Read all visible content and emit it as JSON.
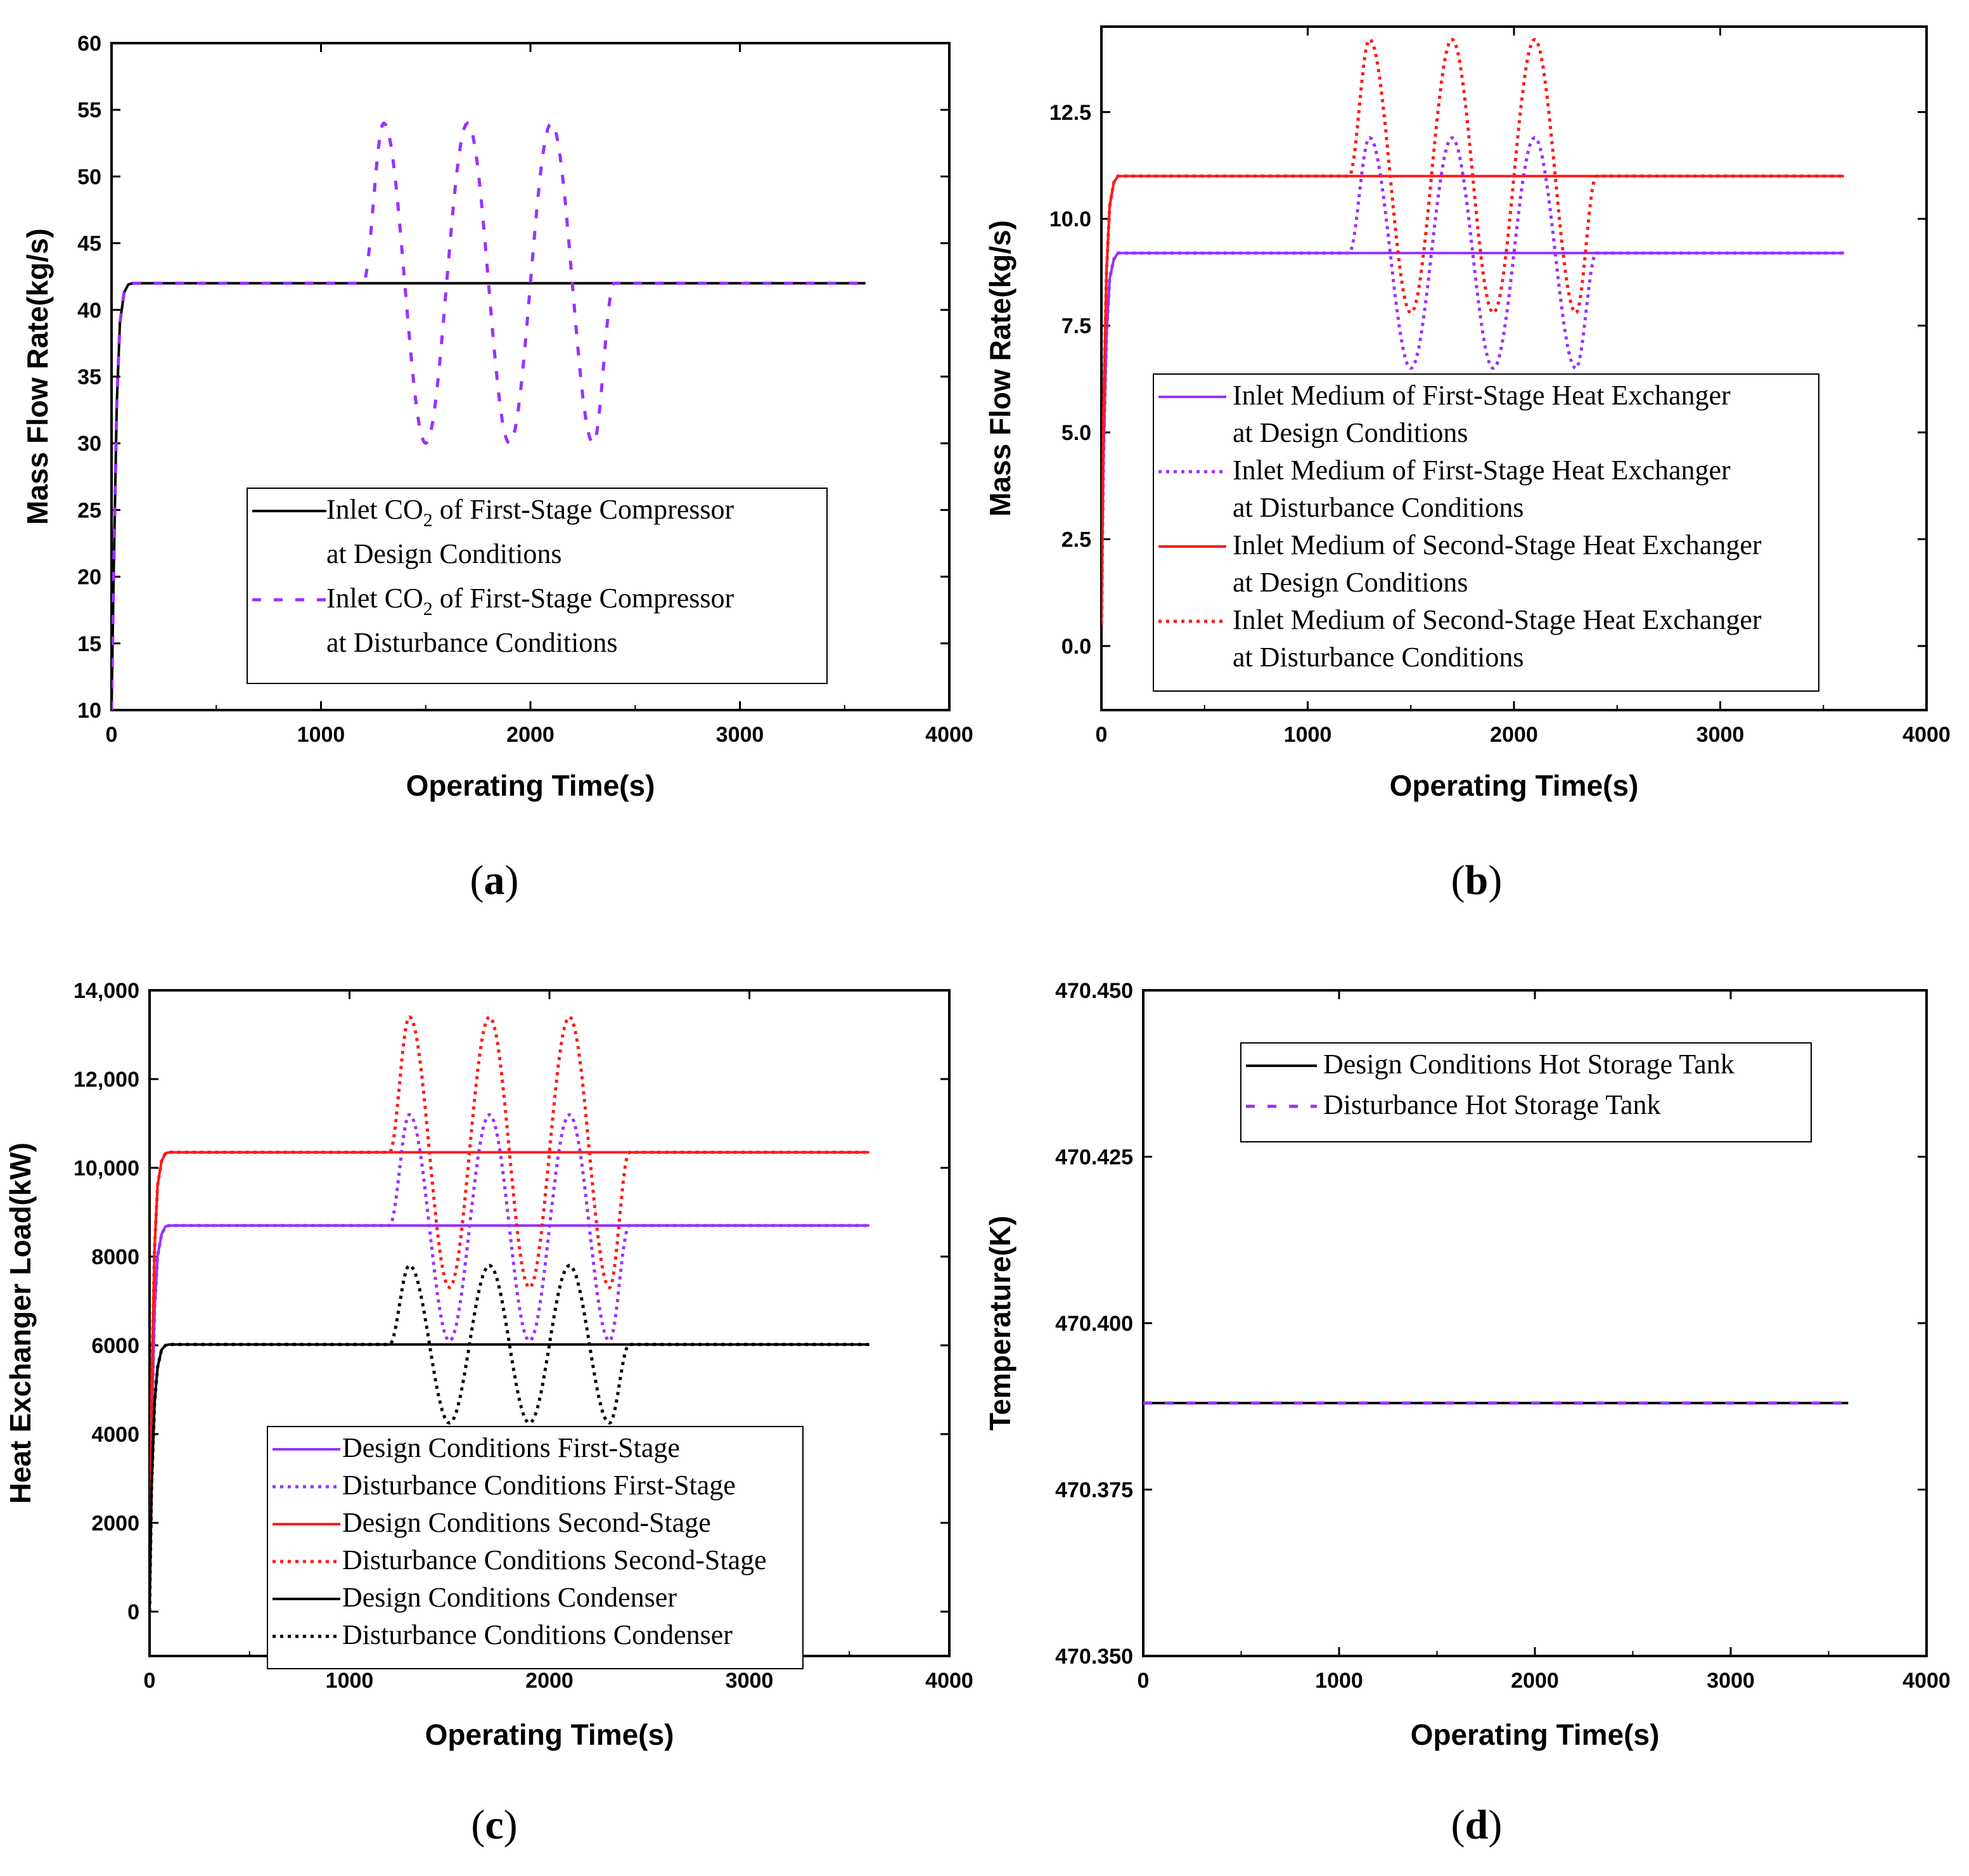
{
  "chart_data": [
    {
      "id": "a",
      "type": "line",
      "caption": "a",
      "xlabel": "Operating Time(s)",
      "ylabel": "Mass Flow Rate(kg/s)",
      "xlim": [
        0,
        4000
      ],
      "ylim": [
        10,
        60
      ],
      "xticks": [
        0,
        1000,
        2000,
        3000,
        4000
      ],
      "yticks": [
        10,
        15,
        20,
        25,
        30,
        35,
        40,
        45,
        50,
        55,
        60
      ],
      "ytick_labels": [
        "10",
        "15",
        "20",
        "25",
        "30",
        "35",
        "40",
        "45",
        "50",
        "55",
        "60"
      ],
      "legend": {
        "entries": [
          {
            "series": 0,
            "lines": [
              "Inlet CO₂  of First-Stage Compressor",
              "at Design Conditions"
            ]
          },
          {
            "series": 1,
            "lines": [
              "Inlet CO₂  of First-Stage Compressor",
              "at Disturbance Conditions"
            ]
          }
        ]
      },
      "series": [
        {
          "name": "Inlet CO2 of First-Stage Compressor at Design Conditions",
          "color": "#000000",
          "style": "solid",
          "x": [
            0,
            10,
            25,
            40,
            60,
            80,
            100,
            3600
          ],
          "y": [
            10,
            20,
            33,
            39,
            41.3,
            41.9,
            42,
            42
          ]
        },
        {
          "name": "Inlet CO2 of First-Stage Compressor at Disturbance Conditions",
          "color": "#9b30ff",
          "style": "dash",
          "x": [
            0,
            10,
            25,
            40,
            60,
            80,
            100,
            1200,
            1300,
            1500,
            1700,
            1900,
            2100,
            2300,
            2400,
            3600
          ],
          "y": [
            10,
            20,
            33,
            39,
            41.3,
            41.9,
            42,
            42,
            54,
            30,
            54,
            30,
            54,
            30,
            42,
            42
          ]
        }
      ]
    },
    {
      "id": "b",
      "type": "line",
      "caption": "b",
      "xlabel": "Operating Time(s)",
      "ylabel": "Mass Flow Rate(kg/s)",
      "xlim": [
        0,
        4000
      ],
      "ylim": [
        -1.5,
        14.5
      ],
      "xticks": [
        0,
        1000,
        2000,
        3000,
        4000
      ],
      "yticks": [
        0,
        2.5,
        5,
        7.5,
        10,
        12.5
      ],
      "ytick_labels": [
        "0.0",
        "2.5",
        "5.0",
        "7.5",
        "10.0",
        "12.5"
      ],
      "legend": {
        "entries": [
          {
            "series": 0,
            "lines": [
              "Inlet Medium of First-Stage Heat Exchanger",
              "at Design Conditions"
            ]
          },
          {
            "series": 1,
            "lines": [
              "Inlet Medium of First-Stage Heat Exchanger",
              "at Disturbance Conditions"
            ]
          },
          {
            "series": 2,
            "lines": [
              "Inlet Medium of Second-Stage Heat Exchanger",
              "at Design Conditions"
            ]
          },
          {
            "series": 3,
            "lines": [
              "Inlet Medium of Second-Stage Heat Exchanger",
              "at Disturbance Conditions"
            ]
          }
        ]
      },
      "series": [
        {
          "name": "Inlet Medium of First-Stage Heat Exchanger at Design Conditions",
          "color": "#9b30ff",
          "style": "solid",
          "x": [
            0,
            10,
            25,
            40,
            60,
            80,
            100,
            3600
          ],
          "y": [
            0.5,
            4.5,
            7.3,
            8.6,
            9.05,
            9.2,
            9.2,
            9.2
          ]
        },
        {
          "name": "Inlet Medium of First-Stage Heat Exchanger at Disturbance Conditions",
          "color": "#9b30ff",
          "style": "dot",
          "x": [
            0,
            10,
            25,
            40,
            60,
            80,
            100,
            1200,
            1300,
            1500,
            1700,
            1900,
            2100,
            2300,
            2400,
            3600
          ],
          "y": [
            0.5,
            4.5,
            7.3,
            8.6,
            9.05,
            9.2,
            9.2,
            9.2,
            11.9,
            6.5,
            11.9,
            6.5,
            11.9,
            6.5,
            9.2,
            9.2
          ]
        },
        {
          "name": "Inlet Medium of Second-Stage Heat Exchanger at Design Conditions",
          "color": "#ff1a1a",
          "style": "solid",
          "x": [
            0,
            10,
            25,
            40,
            60,
            80,
            100,
            3600
          ],
          "y": [
            0.5,
            5.5,
            8.8,
            10.3,
            10.85,
            11,
            11,
            11
          ]
        },
        {
          "name": "Inlet Medium of Second-Stage Heat Exchanger at Disturbance Conditions",
          "color": "#ff1a1a",
          "style": "dot",
          "x": [
            0,
            10,
            25,
            40,
            60,
            80,
            100,
            1200,
            1300,
            1500,
            1700,
            1900,
            2100,
            2300,
            2400,
            3600
          ],
          "y": [
            0.5,
            5.5,
            8.8,
            10.3,
            10.85,
            11,
            11,
            11,
            14.2,
            7.8,
            14.2,
            7.8,
            14.2,
            7.8,
            11,
            11
          ]
        }
      ]
    },
    {
      "id": "c",
      "type": "line",
      "caption": "c",
      "xlabel": "Operating Time(s)",
      "ylabel": "Heat Exchanger Load(kW)",
      "xlim": [
        0,
        4000
      ],
      "ylim": [
        -1000,
        14000
      ],
      "xticks": [
        0,
        1000,
        2000,
        3000,
        4000
      ],
      "yticks": [
        0,
        2000,
        4000,
        6000,
        8000,
        10000,
        12000,
        14000
      ],
      "ytick_labels": [
        "0",
        "2000",
        "4000",
        "6000",
        "8000",
        "10,000",
        "12,000",
        "14,000"
      ],
      "legend": {
        "entries": [
          {
            "series": 0,
            "lines": [
              "Design Conditions First-Stage"
            ]
          },
          {
            "series": 1,
            "lines": [
              "Disturbance Conditions First-Stage"
            ]
          },
          {
            "series": 2,
            "lines": [
              "Design Conditions Second-Stage"
            ]
          },
          {
            "series": 3,
            "lines": [
              "Disturbance Conditions Second-Stage"
            ]
          },
          {
            "series": 4,
            "lines": [
              "Design Conditions Condenser"
            ]
          },
          {
            "series": 5,
            "lines": [
              "Disturbance Conditions Condenser"
            ]
          }
        ]
      },
      "series": [
        {
          "name": "Design Conditions First-Stage",
          "color": "#9b30ff",
          "style": "solid",
          "x": [
            0,
            10,
            25,
            40,
            60,
            80,
            100,
            3600
          ],
          "y": [
            0,
            4000,
            6800,
            8000,
            8500,
            8680,
            8700,
            8700
          ]
        },
        {
          "name": "Disturbance Conditions First-Stage",
          "color": "#9b30ff",
          "style": "dot",
          "x": [
            0,
            10,
            25,
            40,
            60,
            80,
            100,
            1200,
            1300,
            1500,
            1700,
            1900,
            2100,
            2300,
            2400,
            3600
          ],
          "y": [
            0,
            4000,
            6800,
            8000,
            8500,
            8680,
            8700,
            8700,
            11200,
            6100,
            11200,
            6100,
            11200,
            6100,
            8700,
            8700
          ]
        },
        {
          "name": "Design Conditions Second-Stage",
          "color": "#ff1a1a",
          "style": "solid",
          "x": [
            0,
            10,
            25,
            40,
            60,
            80,
            100,
            3600
          ],
          "y": [
            0,
            5000,
            8200,
            9600,
            10150,
            10330,
            10350,
            10350
          ]
        },
        {
          "name": "Disturbance Conditions Second-Stage",
          "color": "#ff1a1a",
          "style": "dot",
          "x": [
            0,
            10,
            25,
            40,
            60,
            80,
            100,
            1200,
            1300,
            1500,
            1700,
            1900,
            2100,
            2300,
            2400,
            3600
          ],
          "y": [
            0,
            5000,
            8200,
            9600,
            10150,
            10330,
            10350,
            10350,
            13400,
            7300,
            13400,
            7300,
            13400,
            7300,
            10350,
            10350
          ]
        },
        {
          "name": "Design Conditions Condenser",
          "color": "#000000",
          "style": "solid",
          "x": [
            0,
            10,
            25,
            40,
            60,
            80,
            100,
            3600
          ],
          "y": [
            0,
            2800,
            4700,
            5500,
            5900,
            6000,
            6020,
            6020
          ]
        },
        {
          "name": "Disturbance Conditions Condenser",
          "color": "#000000",
          "style": "dot",
          "x": [
            0,
            10,
            25,
            40,
            60,
            80,
            100,
            1200,
            1300,
            1500,
            1700,
            1900,
            2100,
            2300,
            2400,
            3600
          ],
          "y": [
            0,
            2800,
            4700,
            5500,
            5900,
            6000,
            6020,
            6020,
            7800,
            4250,
            7800,
            4250,
            7800,
            4250,
            6020,
            6020
          ]
        }
      ]
    },
    {
      "id": "d",
      "type": "line",
      "caption": "d",
      "xlabel": "Operating Time(s)",
      "ylabel": "Temperature(K)",
      "xlim": [
        0,
        4000
      ],
      "ylim": [
        470.35,
        470.45
      ],
      "xticks": [
        0,
        1000,
        2000,
        3000,
        4000
      ],
      "yticks": [
        470.35,
        470.375,
        470.4,
        470.425,
        470.45
      ],
      "ytick_labels": [
        "470.350",
        "470.375",
        "470.400",
        "470.425",
        "470.450"
      ],
      "legend": {
        "entries": [
          {
            "series": 0,
            "lines": [
              "Design Conditions Hot Storage Tank"
            ]
          },
          {
            "series": 1,
            "lines": [
              "Disturbance Hot Storage Tank"
            ]
          }
        ]
      },
      "series": [
        {
          "name": "Design Conditions Hot Storage Tank",
          "color": "#000000",
          "style": "solid",
          "x": [
            0,
            3600
          ],
          "y": [
            470.388,
            470.388
          ]
        },
        {
          "name": "Disturbance Hot Storage Tank",
          "color": "#9b30ff",
          "style": "dash",
          "x": [
            0,
            3600
          ],
          "y": [
            470.388,
            470.388
          ]
        }
      ]
    }
  ]
}
